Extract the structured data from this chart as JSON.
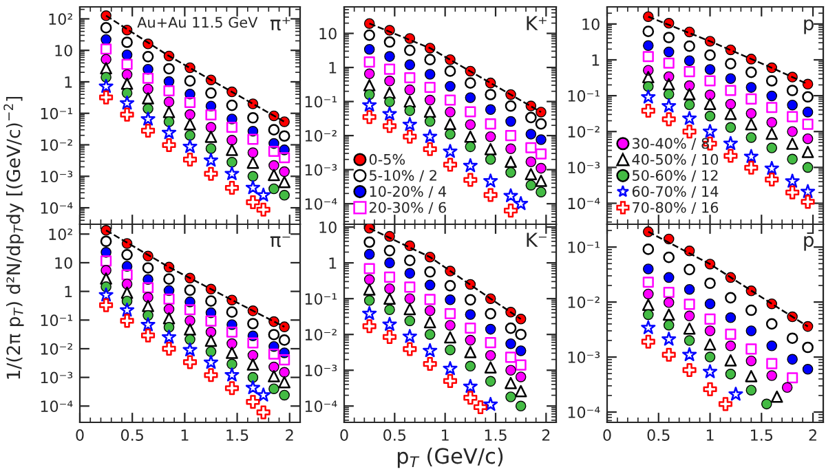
{
  "chart_data": [
    {
      "type": "scatter",
      "title": "π⁺",
      "annotations": [
        "Au+Au 11.5 GeV"
      ],
      "ylabel": "1/(2π p$_{T}$) d²N/dp$_{T}$dy [(GeV/c)$^{−2}$]",
      "log": "y",
      "tick_labels": "y",
      "xlim": [
        0,
        2.1
      ],
      "ylim": [
        3e-05,
        240
      ],
      "xticks": [
        0,
        0.5,
        1,
        1.5,
        2
      ],
      "yticks": [
        {
          "value": 0.0001,
          "label": "10⁻⁴"
        },
        {
          "value": 0.001,
          "label": "10⁻³"
        },
        {
          "value": 0.01,
          "label": "10⁻²"
        },
        {
          "value": 0.1,
          "label": "10⁻¹"
        },
        1,
        10,
        {
          "value": 100,
          "label": "10²"
        }
      ],
      "series": [
        {
          "color": "#ff0000",
          "marker": "circle",
          "x": [
            0.25,
            0.45,
            0.65,
            0.85,
            1.05,
            1.25,
            1.45,
            1.65,
            1.85,
            1.95
          ],
          "values": [
            126,
            44,
            16,
            6.6,
            2.8,
            1.15,
            0.48,
            0.2,
            0.083,
            0.054
          ]
        },
        {
          "color": "#000000",
          "marker": "circle",
          "x": [
            0.25,
            0.45,
            0.65,
            0.85,
            1.05,
            1.25,
            1.45,
            1.65,
            1.85,
            1.95
          ],
          "values": [
            52,
            18,
            6.3,
            2.6,
            1.07,
            0.44,
            0.18,
            0.072,
            0.03,
            0.019
          ]
        },
        {
          "color": "#0000ff",
          "marker": "circle",
          "x": [
            0.25,
            0.45,
            0.65,
            0.85,
            1.05,
            1.25,
            1.45,
            1.65,
            1.85,
            1.95
          ],
          "values": [
            22,
            7.2,
            2.5,
            1.02,
            0.41,
            0.17,
            0.066,
            0.027,
            0.011,
            0.0069
          ]
        },
        {
          "color": "#ff00ff",
          "marker": "square",
          "x": [
            0.25,
            0.45,
            0.65,
            0.85,
            1.05,
            1.25,
            1.45,
            1.65,
            1.85,
            1.95
          ],
          "values": [
            11,
            3.6,
            1.3,
            0.52,
            0.22,
            0.089,
            0.036,
            0.015,
            0.0062,
            0.0039
          ]
        },
        {
          "color": "#ff00ff",
          "marker": "circle",
          "x": [
            0.25,
            0.45,
            0.65,
            0.85,
            1.05,
            1.25,
            1.45,
            1.65,
            1.85,
            1.95
          ],
          "values": [
            5.2,
            1.7,
            0.59,
            0.23,
            0.091,
            0.036,
            0.014,
            0.0056,
            0.0022,
            0.0014
          ]
        },
        {
          "color": "#000000",
          "marker": "triangle",
          "x": [
            0.25,
            0.45,
            0.65,
            0.85,
            1.05,
            1.25,
            1.45,
            1.65,
            1.85,
            1.95
          ],
          "values": [
            2.7,
            0.87,
            0.3,
            0.11,
            0.045,
            0.018,
            0.0069,
            0.0027,
            0.0011,
            0.00066
          ]
        },
        {
          "color": "#44bb44",
          "marker": "circle",
          "x": [
            0.25,
            0.45,
            0.65,
            0.85,
            1.05,
            1.25,
            1.45,
            1.65,
            1.85,
            1.95
          ],
          "values": [
            1.4,
            0.44,
            0.14,
            0.054,
            0.02,
            0.0076,
            0.0028,
            0.001,
            0.0004,
            0.00025
          ]
        },
        {
          "color": "#0000ff",
          "marker": "star",
          "x": [
            0.25,
            0.45,
            0.65,
            0.85,
            1.05,
            1.25,
            1.45,
            1.65,
            1.75
          ],
          "values": [
            0.71,
            0.21,
            0.065,
            0.024,
            0.0087,
            0.0032,
            0.0012,
            0.00043,
            0.00025
          ]
        },
        {
          "color": "#ff0000",
          "marker": "cross",
          "x": [
            0.25,
            0.45,
            0.65,
            0.85,
            1.05,
            1.25,
            1.45,
            1.65,
            1.75
          ],
          "values": [
            0.32,
            0.091,
            0.028,
            0.0098,
            0.0034,
            0.0012,
            0.00043,
            0.00015,
            8.7e-05
          ]
        },
        {
          "type": "line",
          "color": "#000000",
          "line_style": "dashed",
          "x": [
            0.25,
            0.85,
            1.45,
            1.95
          ],
          "values": [
            126,
            6.6,
            0.48,
            0.054
          ]
        }
      ]
    },
    {
      "type": "scatter",
      "title": "K⁺",
      "log": "y",
      "tick_labels": "y",
      "legend": "bottom left",
      "xlim": [
        0,
        2.1
      ],
      "ylim": [
        2.5e-05,
        60
      ],
      "xticks": [
        0,
        0.5,
        1,
        1.5,
        2
      ],
      "yticks": [
        {
          "value": 0.0001,
          "label": "10⁻⁴"
        },
        {
          "value": 0.001,
          "label": "10⁻³"
        },
        {
          "value": 0.01,
          "label": "10⁻²"
        },
        {
          "value": 0.1,
          "label": "10⁻¹"
        },
        1,
        10
      ],
      "series": [
        {
          "name": "0-5%",
          "color": "#ff0000",
          "marker": "circle",
          "x": [
            0.25,
            0.45,
            0.65,
            0.85,
            1.05,
            1.25,
            1.45,
            1.65,
            1.85,
            1.95
          ],
          "values": [
            19.5,
            12.3,
            7.1,
            3.7,
            1.7,
            0.78,
            0.35,
            0.16,
            0.074,
            0.049
          ]
        },
        {
          "name": "5-10% / 2",
          "color": "#000000",
          "marker": "circle",
          "x": [
            0.25,
            0.45,
            0.65,
            0.85,
            1.05,
            1.25,
            1.45,
            1.65,
            1.85,
            1.95
          ],
          "values": [
            8.9,
            5.6,
            3.2,
            1.7,
            0.78,
            0.35,
            0.16,
            0.074,
            0.034,
            0.022
          ]
        },
        {
          "name": "10-20% / 4",
          "color": "#0000ff",
          "marker": "circle",
          "x": [
            0.25,
            0.45,
            0.65,
            0.85,
            1.05,
            1.25,
            1.45,
            1.65,
            1.85,
            1.95
          ],
          "values": [
            3.4,
            2.1,
            1.2,
            0.63,
            0.28,
            0.13,
            0.058,
            0.026,
            0.011,
            0.0076
          ]
        },
        {
          "name": "20-30% / 6",
          "color": "#ff00ff",
          "marker": "square",
          "x": [
            0.25,
            0.45,
            0.65,
            0.85,
            1.05,
            1.25,
            1.45,
            1.65,
            1.85,
            1.95
          ],
          "values": [
            1.45,
            0.89,
            0.5,
            0.26,
            0.11,
            0.05,
            0.022,
            0.01,
            0.0044,
            0.0029
          ]
        },
        {
          "color": "#ff00ff",
          "marker": "circle",
          "x": [
            0.25,
            0.45,
            0.65,
            0.85,
            1.05,
            1.25,
            1.45,
            1.65,
            1.85,
            1.95
          ],
          "values": [
            0.65,
            0.4,
            0.22,
            0.11,
            0.049,
            0.021,
            0.0093,
            0.0041,
            0.0017,
            0.0011
          ]
        },
        {
          "color": "#000000",
          "marker": "triangle",
          "x": [
            0.25,
            0.45,
            0.65,
            0.85,
            1.05,
            1.25,
            1.45,
            1.65,
            1.85,
            1.95
          ],
          "values": [
            0.3,
            0.18,
            0.1,
            0.05,
            0.022,
            0.0093,
            0.004,
            0.0017,
            0.00074,
            0.00047
          ]
        },
        {
          "color": "#44bb44",
          "marker": "circle",
          "x": [
            0.25,
            0.45,
            0.65,
            0.85,
            1.05,
            1.25,
            1.45,
            1.65,
            1.85,
            1.95
          ],
          "values": [
            0.16,
            0.098,
            0.054,
            0.026,
            0.011,
            0.0047,
            0.002,
            0.00083,
            0.00035,
            0.00022
          ]
        },
        {
          "color": "#0000ff",
          "marker": "star",
          "x": [
            0.25,
            0.45,
            0.65,
            0.85,
            1.05,
            1.25,
            1.45,
            1.65,
            1.75
          ],
          "values": [
            0.078,
            0.043,
            0.021,
            0.0093,
            0.0034,
            0.0013,
            0.00046,
            0.00017,
            0.0001
          ]
        },
        {
          "color": "#ff0000",
          "marker": "cross",
          "x": [
            0.25,
            0.45,
            0.65,
            0.85,
            1.05,
            1.25,
            1.45,
            1.65
          ],
          "values": [
            0.035,
            0.019,
            0.0093,
            0.004,
            0.0014,
            0.0005,
            0.00018,
            6.3e-05
          ]
        },
        {
          "type": "line",
          "color": "#000000",
          "line_style": "dashed",
          "x": [
            0.25,
            0.85,
            1.45,
            1.95
          ],
          "values": [
            19.5,
            3.7,
            0.35,
            0.049
          ]
        }
      ]
    },
    {
      "type": "scatter",
      "title": "p",
      "log": "y",
      "tick_labels": "y",
      "legend": "bottom left",
      "xlim": [
        0,
        2.1
      ],
      "ylim": [
        2.6e-05,
        30
      ],
      "xticks": [
        0,
        0.5,
        1,
        1.5,
        2
      ],
      "yticks": [
        {
          "value": 0.0001,
          "label": "10⁻⁴"
        },
        {
          "value": 0.001,
          "label": "10⁻³"
        },
        {
          "value": 0.01,
          "label": "10⁻²"
        },
        {
          "value": 0.1,
          "label": "10⁻¹"
        },
        1,
        10
      ],
      "series": [
        {
          "color": "#ff0000",
          "marker": "circle",
          "x": [
            0.4,
            0.6,
            0.8,
            1.0,
            1.2,
            1.4,
            1.6,
            1.8,
            1.95
          ],
          "values": [
            16,
            10.5,
            6.0,
            3.3,
            1.9,
            1.05,
            0.6,
            0.33,
            0.21
          ]
        },
        {
          "color": "#000000",
          "marker": "circle",
          "x": [
            0.4,
            0.6,
            0.8,
            1.0,
            1.2,
            1.4,
            1.6,
            1.8,
            1.95
          ],
          "values": [
            6.2,
            4.2,
            2.4,
            1.35,
            0.78,
            0.45,
            0.26,
            0.14,
            0.093
          ]
        },
        {
          "color": "#0000ff",
          "marker": "circle",
          "x": [
            0.4,
            0.6,
            0.8,
            1.0,
            1.2,
            1.4,
            1.6,
            1.8,
            1.95
          ],
          "values": [
            2.5,
            1.66,
            0.95,
            0.54,
            0.3,
            0.17,
            0.098,
            0.055,
            0.035
          ]
        },
        {
          "color": "#ff00ff",
          "marker": "square",
          "x": [
            0.4,
            0.6,
            0.8,
            1.0,
            1.2,
            1.4,
            1.6,
            1.8,
            1.95
          ],
          "values": [
            1.23,
            0.81,
            0.47,
            0.26,
            0.14,
            0.081,
            0.047,
            0.026,
            0.016
          ]
        },
        {
          "name": "30-40% / 8",
          "color": "#ff00ff",
          "marker": "circle",
          "x": [
            0.4,
            0.6,
            0.8,
            1.0,
            1.2,
            1.4,
            1.6,
            1.8,
            1.95
          ],
          "values": [
            0.51,
            0.34,
            0.19,
            0.105,
            0.058,
            0.032,
            0.018,
            0.01,
            0.0063
          ]
        },
        {
          "name": "40-50% / 10",
          "color": "#000000",
          "marker": "triangle",
          "x": [
            0.4,
            0.6,
            0.8,
            1.0,
            1.2,
            1.4,
            1.6,
            1.8,
            1.95
          ],
          "values": [
            0.33,
            0.21,
            0.11,
            0.059,
            0.031,
            0.016,
            0.0087,
            0.0046,
            0.0027
          ]
        },
        {
          "name": "50-60% / 12",
          "color": "#44bb44",
          "marker": "circle",
          "x": [
            0.4,
            0.6,
            0.8,
            1.0,
            1.2,
            1.4,
            1.6,
            1.8,
            1.95
          ],
          "values": [
            0.18,
            0.11,
            0.056,
            0.027,
            0.013,
            0.0068,
            0.0035,
            0.0017,
            0.001
          ]
        },
        {
          "name": "60-70% / 14",
          "color": "#0000ff",
          "marker": "star",
          "x": [
            0.4,
            0.6,
            0.8,
            1.0,
            1.2,
            1.4,
            1.6,
            1.8,
            1.95
          ],
          "values": [
            0.091,
            0.051,
            0.023,
            0.01,
            0.0046,
            0.002,
            0.00093,
            0.00041,
            0.00021
          ]
        },
        {
          "name": "70-80% / 16",
          "color": "#ff0000",
          "marker": "cross",
          "x": [
            0.4,
            0.6,
            0.8,
            1.0,
            1.2,
            1.4,
            1.6,
            1.8,
            1.95
          ],
          "values": [
            0.038,
            0.022,
            0.01,
            0.0046,
            0.0021,
            0.00098,
            0.00046,
            0.0002,
            0.00011
          ]
        },
        {
          "type": "line",
          "color": "#000000",
          "line_style": "dashed",
          "x": [
            0.4,
            1.0,
            1.6,
            1.95
          ],
          "values": [
            16,
            3.3,
            0.6,
            0.21
          ]
        }
      ]
    },
    {
      "type": "scatter",
      "title": "π⁻",
      "log": "y",
      "xlim": [
        0,
        2.1
      ],
      "ylim": [
        2.7e-05,
        220
      ],
      "xticks": [
        0,
        0.5,
        1,
        1.5,
        2
      ],
      "yticks": [
        {
          "value": 0.0001,
          "label": "10⁻⁴"
        },
        {
          "value": 0.001,
          "label": "10⁻³"
        },
        {
          "value": 0.01,
          "label": "10⁻²"
        },
        {
          "value": 0.1,
          "label": "10⁻¹"
        },
        1,
        10,
        {
          "value": 100,
          "label": "10²"
        }
      ],
      "series": [
        {
          "color": "#ff0000",
          "marker": "circle",
          "x": [
            0.25,
            0.45,
            0.65,
            0.85,
            1.05,
            1.25,
            1.45,
            1.65,
            1.85,
            1.95
          ],
          "values": [
            135,
            47,
            17,
            7,
            2.9,
            1.2,
            0.5,
            0.21,
            0.088,
            0.058
          ]
        },
        {
          "color": "#000000",
          "marker": "circle",
          "x": [
            0.25,
            0.45,
            0.65,
            0.85,
            1.05,
            1.25,
            1.45,
            1.65,
            1.85,
            1.95
          ],
          "values": [
            56,
            19,
            6.6,
            2.7,
            1.1,
            0.46,
            0.19,
            0.075,
            0.031,
            0.02
          ]
        },
        {
          "color": "#0000ff",
          "marker": "circle",
          "x": [
            0.25,
            0.45,
            0.65,
            0.85,
            1.05,
            1.25,
            1.45,
            1.65,
            1.85,
            1.95
          ],
          "values": [
            23,
            7.5,
            2.6,
            1.07,
            0.43,
            0.18,
            0.069,
            0.028,
            0.012,
            0.0072
          ]
        },
        {
          "color": "#ff00ff",
          "marker": "square",
          "x": [
            0.25,
            0.45,
            0.65,
            0.85,
            1.05,
            1.25,
            1.45,
            1.65,
            1.85,
            1.95
          ],
          "values": [
            11.5,
            3.8,
            1.35,
            0.54,
            0.23,
            0.093,
            0.038,
            0.016,
            0.0065,
            0.0041
          ]
        },
        {
          "color": "#ff00ff",
          "marker": "circle",
          "x": [
            0.25,
            0.45,
            0.65,
            0.85,
            1.05,
            1.25,
            1.45,
            1.65,
            1.85,
            1.95
          ],
          "values": [
            5.4,
            1.8,
            0.62,
            0.24,
            0.095,
            0.038,
            0.015,
            0.0059,
            0.0023,
            0.0015
          ]
        },
        {
          "color": "#000000",
          "marker": "triangle",
          "x": [
            0.25,
            0.45,
            0.65,
            0.85,
            1.05,
            1.25,
            1.45,
            1.65,
            1.85,
            1.95
          ],
          "values": [
            2.8,
            0.9,
            0.31,
            0.115,
            0.047,
            0.019,
            0.0072,
            0.0028,
            0.0011,
            0.00068
          ]
        },
        {
          "color": "#44bb44",
          "marker": "circle",
          "x": [
            0.25,
            0.45,
            0.65,
            0.85,
            1.05,
            1.25,
            1.45,
            1.65,
            1.85,
            1.95
          ],
          "values": [
            1.45,
            0.46,
            0.145,
            0.056,
            0.021,
            0.0079,
            0.0029,
            0.001,
            0.0004,
            0.00024
          ]
        },
        {
          "color": "#0000ff",
          "marker": "star",
          "x": [
            0.25,
            0.45,
            0.65,
            0.85,
            1.05,
            1.25,
            1.45,
            1.65,
            1.75
          ],
          "values": [
            0.74,
            0.22,
            0.068,
            0.025,
            0.009,
            0.0033,
            0.0012,
            0.00043,
            0.00024
          ]
        },
        {
          "color": "#ff0000",
          "marker": "cross",
          "x": [
            0.25,
            0.45,
            0.65,
            0.85,
            1.05,
            1.25,
            1.45,
            1.65,
            1.75
          ],
          "values": [
            0.33,
            0.094,
            0.029,
            0.01,
            0.0034,
            0.0012,
            0.00042,
            0.00014,
            6e-05
          ]
        },
        {
          "type": "line",
          "color": "#000000",
          "line_style": "dashed",
          "x": [
            0.25,
            0.85,
            1.45,
            1.95
          ],
          "values": [
            135,
            7,
            0.5,
            0.058
          ]
        }
      ]
    },
    {
      "type": "scatter",
      "title": "K⁻",
      "xlabel": "p$_{T}$ (GeV/c)",
      "log": "y",
      "xlim": [
        0,
        2.1
      ],
      "ylim": [
        3.5e-05,
        12
      ],
      "xticks": [
        0,
        0.5,
        1,
        1.5,
        2
      ],
      "yticks": [
        {
          "value": 0.0001,
          "label": "10⁻⁴"
        },
        {
          "value": 0.001,
          "label": "10⁻³"
        },
        {
          "value": 0.01,
          "label": "10⁻²"
        },
        {
          "value": 0.1,
          "label": "10⁻¹"
        },
        1,
        10
      ],
      "series": [
        {
          "color": "#ff0000",
          "marker": "circle",
          "x": [
            0.25,
            0.45,
            0.65,
            0.85,
            1.05,
            1.25,
            1.45,
            1.65,
            1.75
          ],
          "values": [
            9.3,
            5.5,
            3.0,
            1.45,
            0.59,
            0.25,
            0.1,
            0.042,
            0.027
          ]
        },
        {
          "color": "#000000",
          "marker": "circle",
          "x": [
            0.25,
            0.45,
            0.65,
            0.85,
            1.05,
            1.25,
            1.45,
            1.65,
            1.75
          ],
          "values": [
            3.8,
            2.2,
            1.17,
            0.56,
            0.23,
            0.093,
            0.038,
            0.015,
            0.01
          ]
        },
        {
          "color": "#0000ff",
          "marker": "circle",
          "x": [
            0.25,
            0.45,
            0.65,
            0.85,
            1.05,
            1.25,
            1.45,
            1.65,
            1.75
          ],
          "values": [
            1.74,
            1.0,
            0.51,
            0.24,
            0.093,
            0.036,
            0.014,
            0.0055,
            0.0035
          ]
        },
        {
          "color": "#ff00ff",
          "marker": "square",
          "x": [
            0.25,
            0.45,
            0.65,
            0.85,
            1.05,
            1.25,
            1.45,
            1.65,
            1.75
          ],
          "values": [
            0.69,
            0.4,
            0.21,
            0.095,
            0.038,
            0.015,
            0.0059,
            0.0023,
            0.0014
          ]
        },
        {
          "color": "#ff00ff",
          "marker": "circle",
          "x": [
            0.25,
            0.45,
            0.65,
            0.85,
            1.05,
            1.25,
            1.45,
            1.65,
            1.75
          ],
          "values": [
            0.34,
            0.19,
            0.1,
            0.046,
            0.018,
            0.0069,
            0.0026,
            0.001,
            0.00065
          ]
        },
        {
          "color": "#000000",
          "marker": "triangle",
          "x": [
            0.25,
            0.45,
            0.65,
            0.85,
            1.05,
            1.25,
            1.45,
            1.65,
            1.75
          ],
          "values": [
            0.18,
            0.1,
            0.051,
            0.022,
            0.0083,
            0.0032,
            0.0012,
            0.00044,
            0.00026
          ]
        },
        {
          "color": "#44bb44",
          "marker": "circle",
          "x": [
            0.25,
            0.45,
            0.65,
            0.85,
            1.05,
            1.25,
            1.45,
            1.65,
            1.75
          ],
          "values": [
            0.089,
            0.049,
            0.024,
            0.01,
            0.0037,
            0.0013,
            0.00049,
            0.00018,
            0.0001
          ]
        },
        {
          "color": "#0000ff",
          "marker": "star",
          "x": [
            0.25,
            0.45,
            0.65,
            0.85,
            1.05,
            1.25,
            1.45
          ],
          "values": [
            0.038,
            0.019,
            0.0087,
            0.0035,
            0.0011,
            0.00035,
            0.00011
          ]
        },
        {
          "color": "#ff0000",
          "marker": "cross",
          "x": [
            0.25,
            0.45,
            0.65,
            0.85,
            1.05,
            1.25,
            1.35
          ],
          "values": [
            0.017,
            0.0085,
            0.0039,
            0.0015,
            0.0005,
            0.00017,
            9.3e-05
          ]
        },
        {
          "type": "line",
          "color": "#000000",
          "line_style": "dashed",
          "x": [
            0.25,
            0.85,
            1.45,
            1.75
          ],
          "values": [
            9.3,
            1.45,
            0.1,
            0.027
          ]
        }
      ]
    },
    {
      "type": "scatter",
      "title": "p̄",
      "log": "y",
      "xlim": [
        0,
        2.1
      ],
      "ylim": [
        6.5e-05,
        0.26
      ],
      "xticks": [
        0,
        0.5,
        1,
        1.5,
        2
      ],
      "yticks": [
        {
          "value": 0.0001,
          "label": "10⁻⁴"
        },
        {
          "value": 0.001,
          "label": "10⁻³"
        },
        {
          "value": 0.01,
          "label": "10⁻²"
        },
        {
          "value": 0.1,
          "label": "10⁻¹"
        }
      ],
      "series": [
        {
          "color": "#ff0000",
          "marker": "circle",
          "x": [
            0.4,
            0.6,
            0.8,
            1.0,
            1.2,
            1.4,
            1.6,
            1.8,
            1.95
          ],
          "values": [
            0.19,
            0.14,
            0.085,
            0.049,
            0.028,
            0.016,
            0.0093,
            0.0054,
            0.0036
          ]
        },
        {
          "color": "#000000",
          "marker": "circle",
          "x": [
            0.4,
            0.6,
            0.8,
            1.0,
            1.2,
            1.4,
            1.6,
            1.8,
            1.95
          ],
          "values": [
            0.091,
            0.065,
            0.039,
            0.022,
            0.012,
            0.0071,
            0.004,
            0.0022,
            0.0015
          ]
        },
        {
          "color": "#0000ff",
          "marker": "circle",
          "x": [
            0.4,
            0.6,
            0.8,
            1.0,
            1.2,
            1.4,
            1.6,
            1.8,
            1.95
          ],
          "values": [
            0.04,
            0.028,
            0.017,
            0.0093,
            0.0052,
            0.003,
            0.0016,
            0.00091,
            0.0006
          ]
        },
        {
          "color": "#ff00ff",
          "marker": "square",
          "x": [
            0.4,
            0.6,
            0.8,
            1.0,
            1.2,
            1.4,
            1.6,
            1.8
          ],
          "values": [
            0.023,
            0.015,
            0.0091,
            0.0049,
            0.0026,
            0.0014,
            0.00076,
            0.00042
          ]
        },
        {
          "color": "#ff00ff",
          "marker": "circle",
          "x": [
            0.4,
            0.6,
            0.8,
            1.0,
            1.2,
            1.4,
            1.6,
            1.75
          ],
          "values": [
            0.014,
            0.0098,
            0.0056,
            0.003,
            0.0016,
            0.00085,
            0.00046,
            0.00028
          ]
        },
        {
          "color": "#000000",
          "marker": "triangle",
          "x": [
            0.4,
            0.6,
            0.8,
            1.0,
            1.2,
            1.4,
            1.65
          ],
          "values": [
            0.0089,
            0.0059,
            0.0033,
            0.0017,
            0.00087,
            0.00045,
            0.00019
          ]
        },
        {
          "color": "#44bb44",
          "marker": "circle",
          "x": [
            0.4,
            0.6,
            0.8,
            1.0,
            1.2,
            1.4,
            1.55
          ],
          "values": [
            0.0059,
            0.0038,
            0.002,
            0.001,
            0.00049,
            0.00025,
            0.00014
          ]
        },
        {
          "color": "#0000ff",
          "marker": "star",
          "x": [
            0.4,
            0.6,
            0.8,
            1.0,
            1.25
          ],
          "values": [
            0.0034,
            0.0021,
            0.0011,
            0.00054,
            0.00021
          ]
        },
        {
          "color": "#ff0000",
          "marker": "cross",
          "x": [
            0.4,
            0.6,
            0.8,
            1.0,
            1.15
          ],
          "values": [
            0.0019,
            0.0011,
            0.00058,
            0.00026,
            0.00014
          ]
        },
        {
          "type": "line",
          "color": "#000000",
          "line_style": "dashed",
          "x": [
            0.4,
            1.0,
            1.6,
            1.95
          ],
          "values": [
            0.19,
            0.049,
            0.0093,
            0.0036
          ]
        }
      ]
    }
  ]
}
